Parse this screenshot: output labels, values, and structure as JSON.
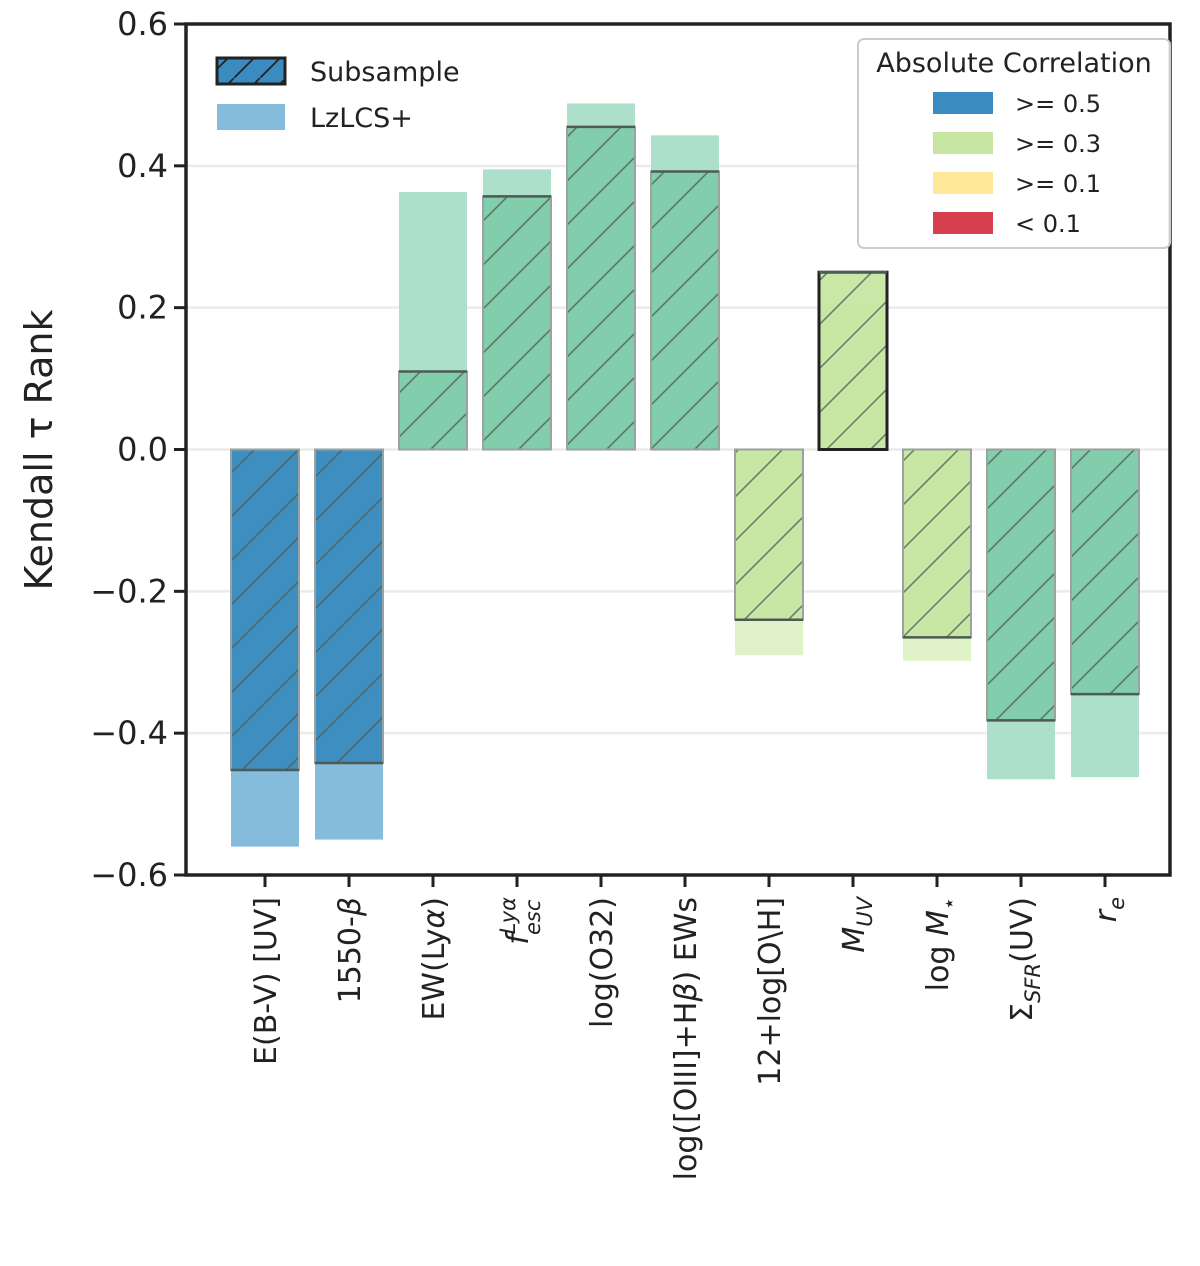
{
  "chart_data": {
    "type": "bar",
    "ylabel": "Kendall τ Rank",
    "ylim": [
      -0.6,
      0.6
    ],
    "yticks": [
      "−0.6",
      "−0.4",
      "−0.2",
      "0.0",
      "0.2",
      "0.4",
      "0.6"
    ],
    "grid": true,
    "categories": [
      "E(B-V) [UV]",
      "1550-β",
      "EW(Lyα)",
      "f_esc^Lyα",
      "log(O32)",
      "log([OIII]+Hβ) EWs",
      "12+log[O\\H]",
      "M_UV",
      "log M⋆",
      "Σ_SFR(UV)",
      "r_e"
    ],
    "series": [
      {
        "name": "Subsample",
        "values": [
          -0.452,
          -0.442,
          0.11,
          0.357,
          0.455,
          0.392,
          -0.24,
          0.25,
          -0.265,
          -0.382,
          -0.345
        ],
        "colors": [
          "#3a8bbf",
          "#3a8bbf",
          "#7fcbaa",
          "#7fcbaa",
          "#7fcbaa",
          "#7fcbaa",
          "#c6e6a2",
          "#c6e6a2",
          "#c6e6a2",
          "#7fcbaa",
          "#7fcbaa"
        ]
      },
      {
        "name": "LzLCS+",
        "values": [
          -0.56,
          -0.55,
          0.363,
          0.395,
          0.488,
          0.443,
          -0.29,
          0.205,
          -0.298,
          -0.465,
          -0.462
        ],
        "colors": [
          "#86bcdb",
          "#86bcdb",
          "#ace0cb",
          "#ace0cb",
          "#ace0cb",
          "#ace0cb",
          "#dff2c8",
          "#dff2c8",
          "#dff2c8",
          "#ace0cb",
          "#ace0cb"
        ]
      }
    ],
    "legend": {
      "position": "top-left",
      "entries": [
        "Subsample",
        "LzLCS+"
      ]
    },
    "legend2": {
      "position": "top-right",
      "title": "Absolute Correlation",
      "entries": [
        {
          "label": ">= 0.5",
          "color": "#3a8bbf"
        },
        {
          "label": ">= 0.3",
          "color": "#c6e6a2"
        },
        {
          "label": ">= 0.1",
          "color": "#fee99b"
        },
        {
          "label": "< 0.1",
          "color": "#d6404e"
        }
      ]
    }
  }
}
